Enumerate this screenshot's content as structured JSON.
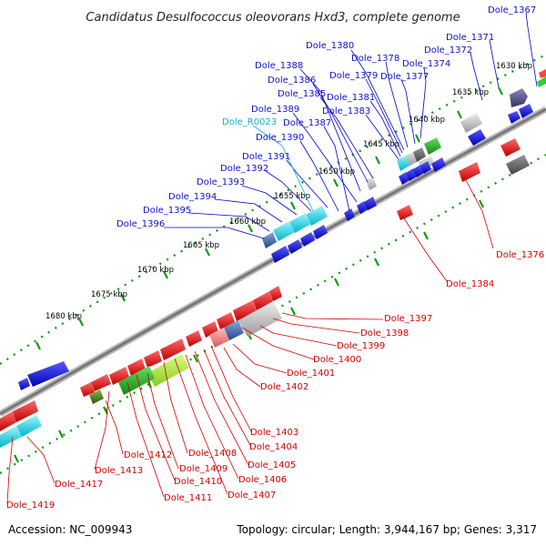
{
  "title": "Candidatus Desulfococcus oleovorans Hxd3, complete genome",
  "footer": {
    "accession": "Accession: NC_009943",
    "topology": "Topology: circular; Length: 3,944,167 bp; Genes: 3,317"
  },
  "kbp_labels": [
    "1630 kbp",
    "1635 kbp",
    "1640 kbp",
    "1645 kbp",
    "1650 kbp",
    "1655 kbp",
    "1660 kbp",
    "1665 kbp",
    "1670 kbp",
    "1675 kbp",
    "1680 kbp"
  ],
  "genes_top": [
    "Dole_1367",
    "Dole_1371",
    "Dole_1372",
    "Dole_1374",
    "Dole_1377",
    "Dole_1378",
    "Dole_1380",
    "Dole_1379",
    "Dole_1381",
    "Dole_1383",
    "Dole_1385",
    "Dole_1386",
    "Dole_1388",
    "Dole_1389",
    "Dole_1387",
    "Dole_R0023",
    "Dole_1390",
    "Dole_1391",
    "Dole_1392",
    "Dole_1393",
    "Dole_1394",
    "Dole_1395",
    "Dole_1396"
  ],
  "genes_bottom": [
    "Dole_1376",
    "Dole_1384",
    "Dole_1397",
    "Dole_1398",
    "Dole_1399",
    "Dole_1400",
    "Dole_1401",
    "Dole_1402",
    "Dole_1403",
    "Dole_1404",
    "Dole_1405",
    "Dole_1406",
    "Dole_1407",
    "Dole_1408",
    "Dole_1409",
    "Dole_1410",
    "Dole_1411",
    "Dole_1412",
    "Dole_1413",
    "Dole_1417",
    "Dole_1419"
  ],
  "colors": {
    "forward": "#0000dd",
    "reverse": "#ee0000",
    "rna": "#00c8dc",
    "backbone": "#888888",
    "ticks": "#009900"
  }
}
